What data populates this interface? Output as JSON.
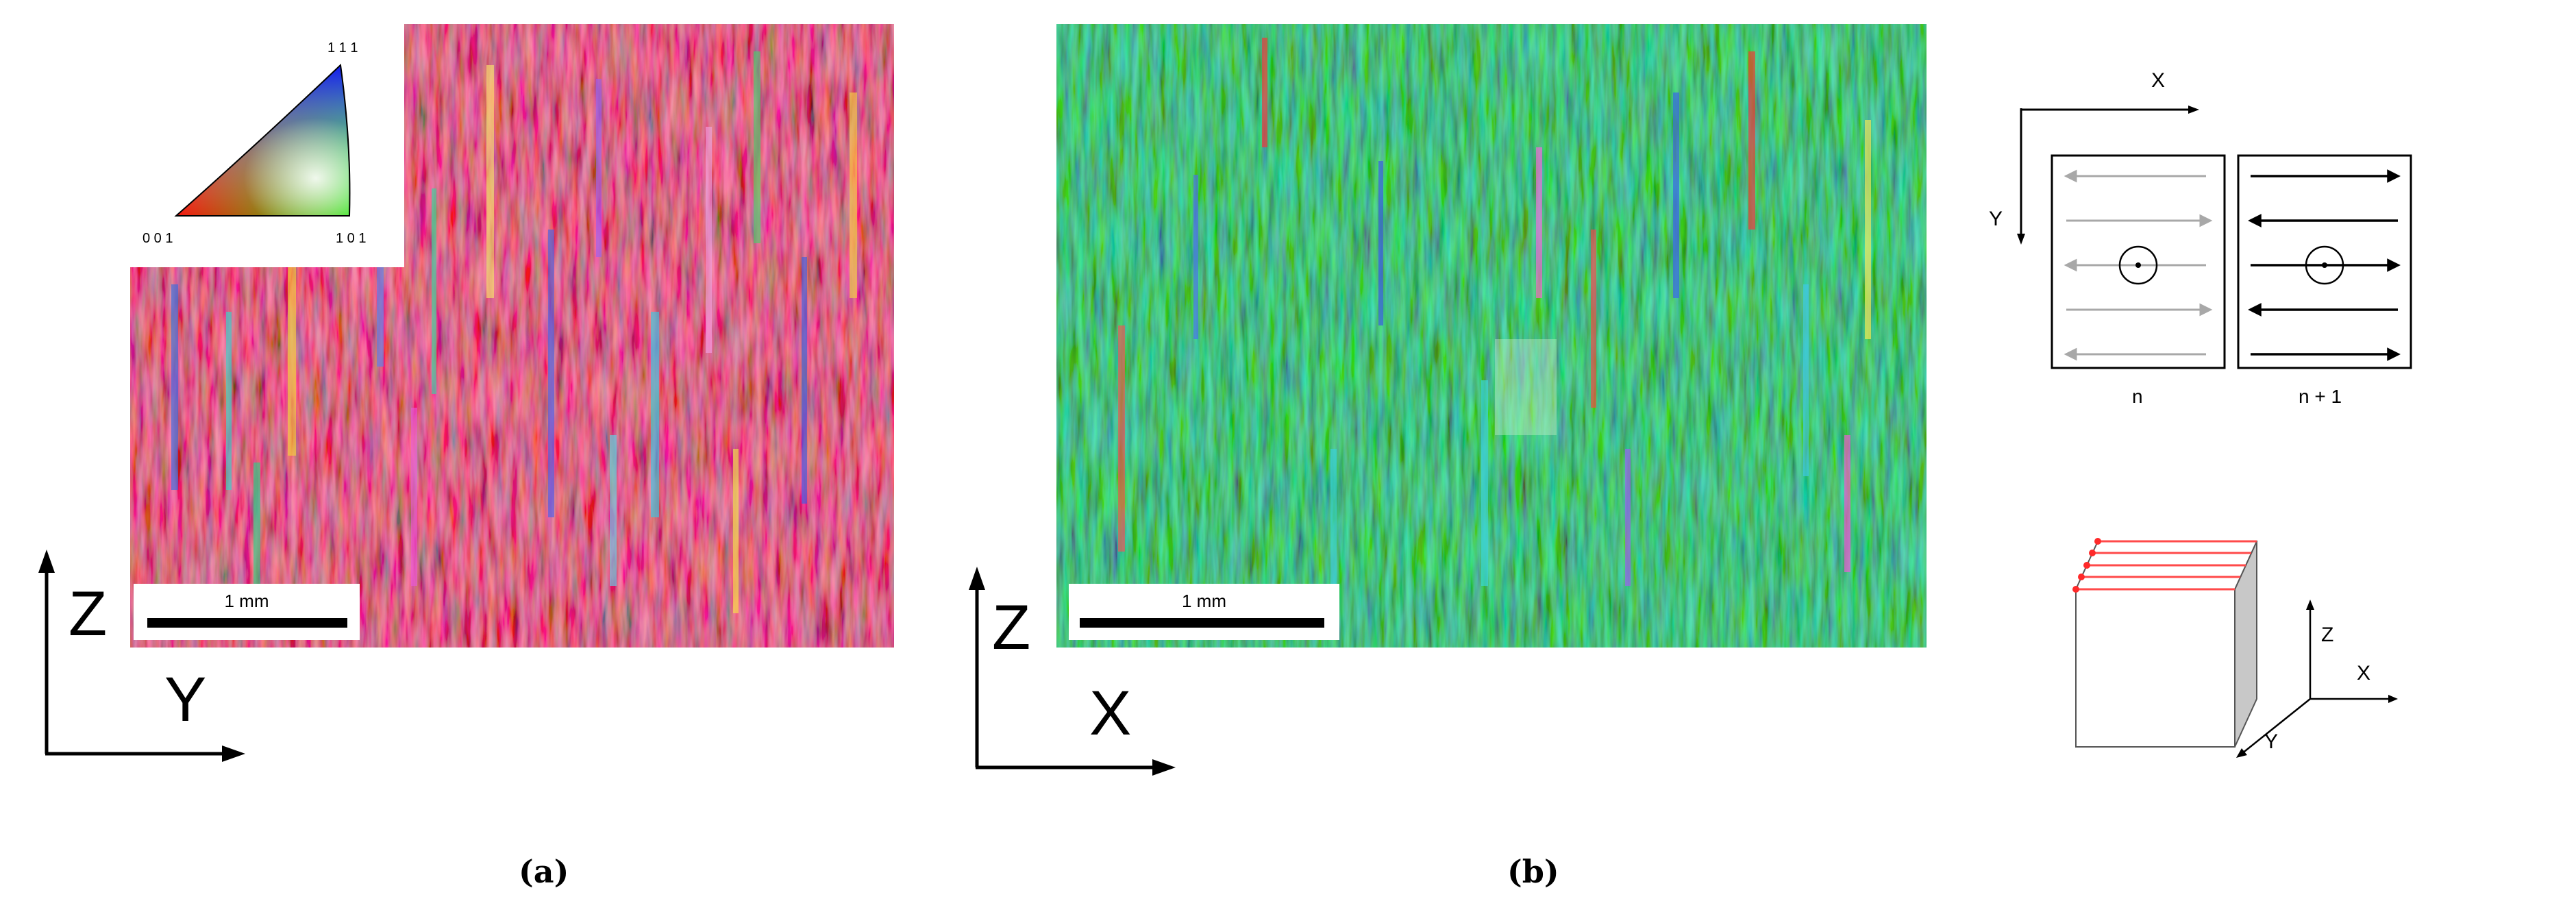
{
  "figure": {
    "panel_a": {
      "caption": "(a)",
      "scale_bar": "1 mm",
      "axis_vertical": "Z",
      "axis_horizontal": "Y",
      "legend": {
        "top": "1 1 1",
        "bottom_left": "0 0 1",
        "bottom_right": "1 0 1"
      },
      "map_color": "#ee2a3a"
    },
    "panel_b": {
      "caption": "(b)",
      "scale_bar": "1 mm",
      "axis_vertical": "Z",
      "axis_horizontal": "X",
      "map_color": "#22e63a"
    },
    "scan_diagram": {
      "axis_x": "X",
      "axis_y": "Y",
      "layer_n": "n",
      "layer_n1": "n + 1"
    },
    "block_diagram": {
      "axis_z": "Z",
      "axis_x": "X",
      "axis_y": "Y"
    }
  }
}
